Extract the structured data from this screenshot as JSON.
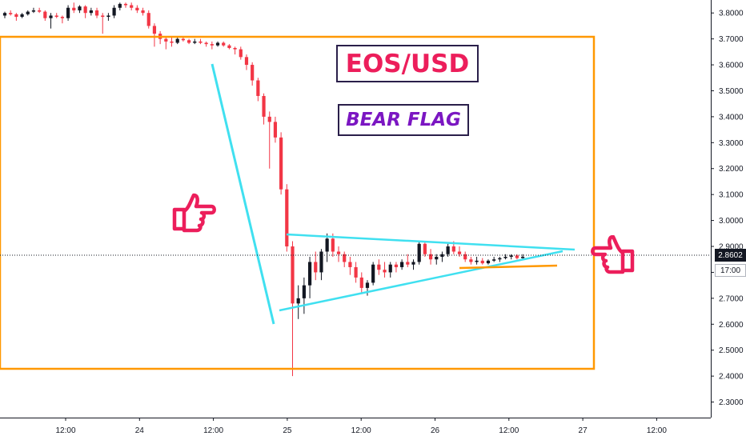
{
  "title": "EOS/USD",
  "pattern_label": "BEAR FLAG",
  "last_price_label": "2.8602",
  "countdown_label": "17:00",
  "colors": {
    "up": "#131722",
    "down": "#f23645",
    "orange": "#ff9800",
    "cyan": "#40e0f0",
    "title": "#ec1e5b",
    "pattern": "#7b16c2"
  },
  "chart_data": {
    "type": "candlestick",
    "symbol": "EOS/USD",
    "interval": "1h",
    "ylim": [
      2.24,
      3.85
    ],
    "y_ticks": [
      "2.3000",
      "2.4000",
      "2.5000",
      "2.6000",
      "2.7000",
      "2.8000",
      "2.9000",
      "3.0000",
      "3.1000",
      "3.2000",
      "3.3000",
      "3.4000",
      "3.5000",
      "3.6000",
      "3.7000",
      "3.8000"
    ],
    "x_ticks": [
      "12:00",
      "24",
      "12:00",
      "25",
      "12:00",
      "26",
      "12:00",
      "27",
      "12:00"
    ],
    "last_price": 2.8602,
    "candles": [
      [
        3.79,
        3.805,
        3.78,
        3.8
      ],
      [
        3.8,
        3.81,
        3.79,
        3.795
      ],
      [
        3.795,
        3.8,
        3.77,
        3.785
      ],
      [
        3.785,
        3.8,
        3.78,
        3.795
      ],
      [
        3.795,
        3.81,
        3.79,
        3.805
      ],
      [
        3.805,
        3.82,
        3.8,
        3.81
      ],
      [
        3.81,
        3.82,
        3.8,
        3.805
      ],
      [
        3.805,
        3.81,
        3.77,
        3.78
      ],
      [
        3.78,
        3.8,
        3.74,
        3.79
      ],
      [
        3.79,
        3.8,
        3.78,
        3.785
      ],
      [
        3.785,
        3.79,
        3.76,
        3.78
      ],
      [
        3.78,
        3.83,
        3.77,
        3.82
      ],
      [
        3.82,
        3.84,
        3.8,
        3.81
      ],
      [
        3.81,
        3.83,
        3.8,
        3.825
      ],
      [
        3.825,
        3.83,
        3.78,
        3.8
      ],
      [
        3.8,
        3.82,
        3.79,
        3.81
      ],
      [
        3.81,
        3.82,
        3.78,
        3.79
      ],
      [
        3.79,
        3.8,
        3.72,
        3.785
      ],
      [
        3.785,
        3.8,
        3.77,
        3.79
      ],
      [
        3.79,
        3.83,
        3.78,
        3.82
      ],
      [
        3.82,
        3.84,
        3.81,
        3.835
      ],
      [
        3.835,
        3.84,
        3.82,
        3.83
      ],
      [
        3.83,
        3.84,
        3.81,
        3.82
      ],
      [
        3.82,
        3.83,
        3.8,
        3.81
      ],
      [
        3.81,
        3.82,
        3.79,
        3.8
      ],
      [
        3.8,
        3.81,
        3.74,
        3.75
      ],
      [
        3.75,
        3.76,
        3.67,
        3.72
      ],
      [
        3.72,
        3.73,
        3.68,
        3.7
      ],
      [
        3.7,
        3.71,
        3.66,
        3.69
      ],
      [
        3.69,
        3.71,
        3.67,
        3.685
      ],
      [
        3.685,
        3.71,
        3.68,
        3.7
      ],
      [
        3.7,
        3.71,
        3.69,
        3.695
      ],
      [
        3.695,
        3.7,
        3.68,
        3.685
      ],
      [
        3.685,
        3.7,
        3.68,
        3.69
      ],
      [
        3.69,
        3.7,
        3.68,
        3.685
      ],
      [
        3.685,
        3.69,
        3.67,
        3.68
      ],
      [
        3.68,
        3.69,
        3.66,
        3.675
      ],
      [
        3.675,
        3.69,
        3.67,
        3.685
      ],
      [
        3.685,
        3.69,
        3.67,
        3.675
      ],
      [
        3.675,
        3.68,
        3.66,
        3.665
      ],
      [
        3.665,
        3.67,
        3.64,
        3.66
      ],
      [
        3.66,
        3.67,
        3.62,
        3.63
      ],
      [
        3.63,
        3.64,
        3.58,
        3.6
      ],
      [
        3.6,
        3.61,
        3.52,
        3.54
      ],
      [
        3.54,
        3.55,
        3.46,
        3.48
      ],
      [
        3.48,
        3.49,
        3.37,
        3.4
      ],
      [
        3.4,
        3.42,
        3.2,
        3.38
      ],
      [
        3.38,
        3.4,
        3.3,
        3.32
      ],
      [
        3.32,
        3.34,
        3.1,
        3.12
      ],
      [
        3.12,
        3.14,
        2.88,
        2.9
      ],
      [
        2.9,
        2.92,
        2.4,
        2.68
      ],
      [
        2.68,
        2.75,
        2.62,
        2.7
      ],
      [
        2.7,
        2.78,
        2.64,
        2.75
      ],
      [
        2.75,
        2.86,
        2.7,
        2.84
      ],
      [
        2.84,
        2.88,
        2.77,
        2.8
      ],
      [
        2.8,
        2.89,
        2.77,
        2.88
      ],
      [
        2.88,
        2.95,
        2.84,
        2.93
      ],
      [
        2.93,
        2.95,
        2.86,
        2.88
      ],
      [
        2.88,
        2.9,
        2.84,
        2.87
      ],
      [
        2.87,
        2.88,
        2.82,
        2.84
      ],
      [
        2.84,
        2.86,
        2.79,
        2.82
      ],
      [
        2.82,
        2.84,
        2.76,
        2.78
      ],
      [
        2.78,
        2.8,
        2.72,
        2.74
      ],
      [
        2.74,
        2.77,
        2.71,
        2.76
      ],
      [
        2.76,
        2.84,
        2.75,
        2.83
      ],
      [
        2.83,
        2.85,
        2.79,
        2.81
      ],
      [
        2.81,
        2.84,
        2.78,
        2.8
      ],
      [
        2.8,
        2.84,
        2.78,
        2.83
      ],
      [
        2.83,
        2.84,
        2.8,
        2.82
      ],
      [
        2.82,
        2.85,
        2.81,
        2.84
      ],
      [
        2.84,
        2.87,
        2.82,
        2.83
      ],
      [
        2.83,
        2.85,
        2.81,
        2.84
      ],
      [
        2.84,
        2.92,
        2.83,
        2.91
      ],
      [
        2.91,
        2.92,
        2.86,
        2.87
      ],
      [
        2.87,
        2.89,
        2.83,
        2.85
      ],
      [
        2.85,
        2.87,
        2.83,
        2.86
      ],
      [
        2.86,
        2.88,
        2.84,
        2.87
      ],
      [
        2.87,
        2.91,
        2.86,
        2.9
      ],
      [
        2.9,
        2.92,
        2.87,
        2.88
      ],
      [
        2.88,
        2.9,
        2.86,
        2.87
      ],
      [
        2.87,
        2.88,
        2.84,
        2.85
      ],
      [
        2.85,
        2.86,
        2.83,
        2.84
      ],
      [
        2.84,
        2.86,
        2.83,
        2.845
      ],
      [
        2.845,
        2.855,
        2.83,
        2.835
      ],
      [
        2.835,
        2.85,
        2.83,
        2.845
      ],
      [
        2.845,
        2.86,
        2.84,
        2.85
      ],
      [
        2.85,
        2.86,
        2.84,
        2.855
      ],
      [
        2.855,
        2.87,
        2.85,
        2.86
      ],
      [
        2.86,
        2.87,
        2.85,
        2.865
      ],
      [
        2.865,
        2.87,
        2.85,
        2.855
      ],
      [
        2.855,
        2.87,
        2.85,
        2.8602
      ]
    ]
  }
}
